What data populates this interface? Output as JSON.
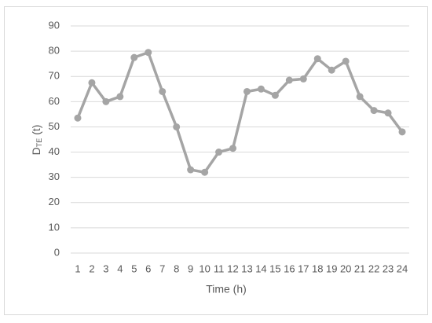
{
  "chart_data": {
    "type": "line",
    "y_label": "D",
    "y_label_subscript": "TE",
    "y_label_unit": "(t)",
    "x_label": "Time (h)",
    "categories": [
      1,
      2,
      3,
      4,
      5,
      6,
      7,
      8,
      9,
      10,
      11,
      12,
      13,
      14,
      15,
      16,
      17,
      18,
      19,
      20,
      21,
      22,
      23,
      24
    ],
    "values": [
      53.5,
      67.5,
      60,
      62,
      77.5,
      79.5,
      64,
      50,
      33,
      32,
      40,
      41.5,
      64,
      65,
      62.5,
      68.5,
      69,
      77,
      72.5,
      76,
      62,
      56.5,
      55.5,
      48
    ],
    "color": "#a5a5a5",
    "ylim": [
      0,
      90
    ],
    "yticks": [
      0,
      10,
      20,
      30,
      40,
      50,
      60,
      70,
      80,
      90
    ],
    "grid": true
  }
}
